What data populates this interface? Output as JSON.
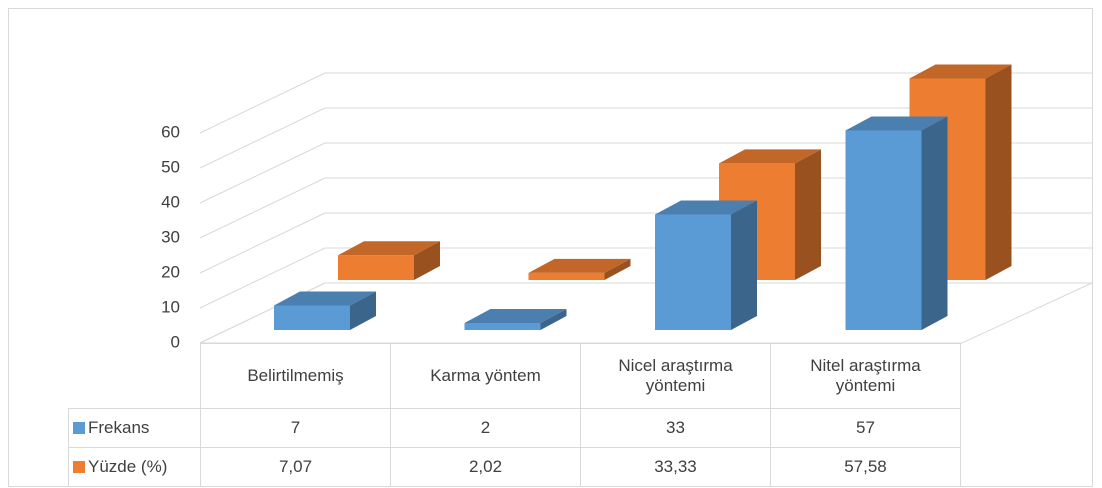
{
  "chart_data": {
    "type": "bar3d",
    "categories": [
      "Belirtilmemiş",
      "Karma yöntem",
      "Nicel araştırma yöntemi",
      "Nitel araştırma yöntemi"
    ],
    "series": [
      {
        "name": "Frekans",
        "color": "#5b9bd5",
        "values": [
          7,
          2,
          33,
          57
        ]
      },
      {
        "name": "Yüzde (%)",
        "color": "#ed7d31",
        "values": [
          7.07,
          2.02,
          33.33,
          57.58
        ],
        "value_labels": [
          "7,07",
          "2,02",
          "33,33",
          "57,58"
        ]
      }
    ],
    "ylim": [
      0,
      60
    ],
    "yticks": [
      0,
      10,
      20,
      30,
      40,
      50,
      60
    ],
    "grid": true,
    "data_table": true
  }
}
